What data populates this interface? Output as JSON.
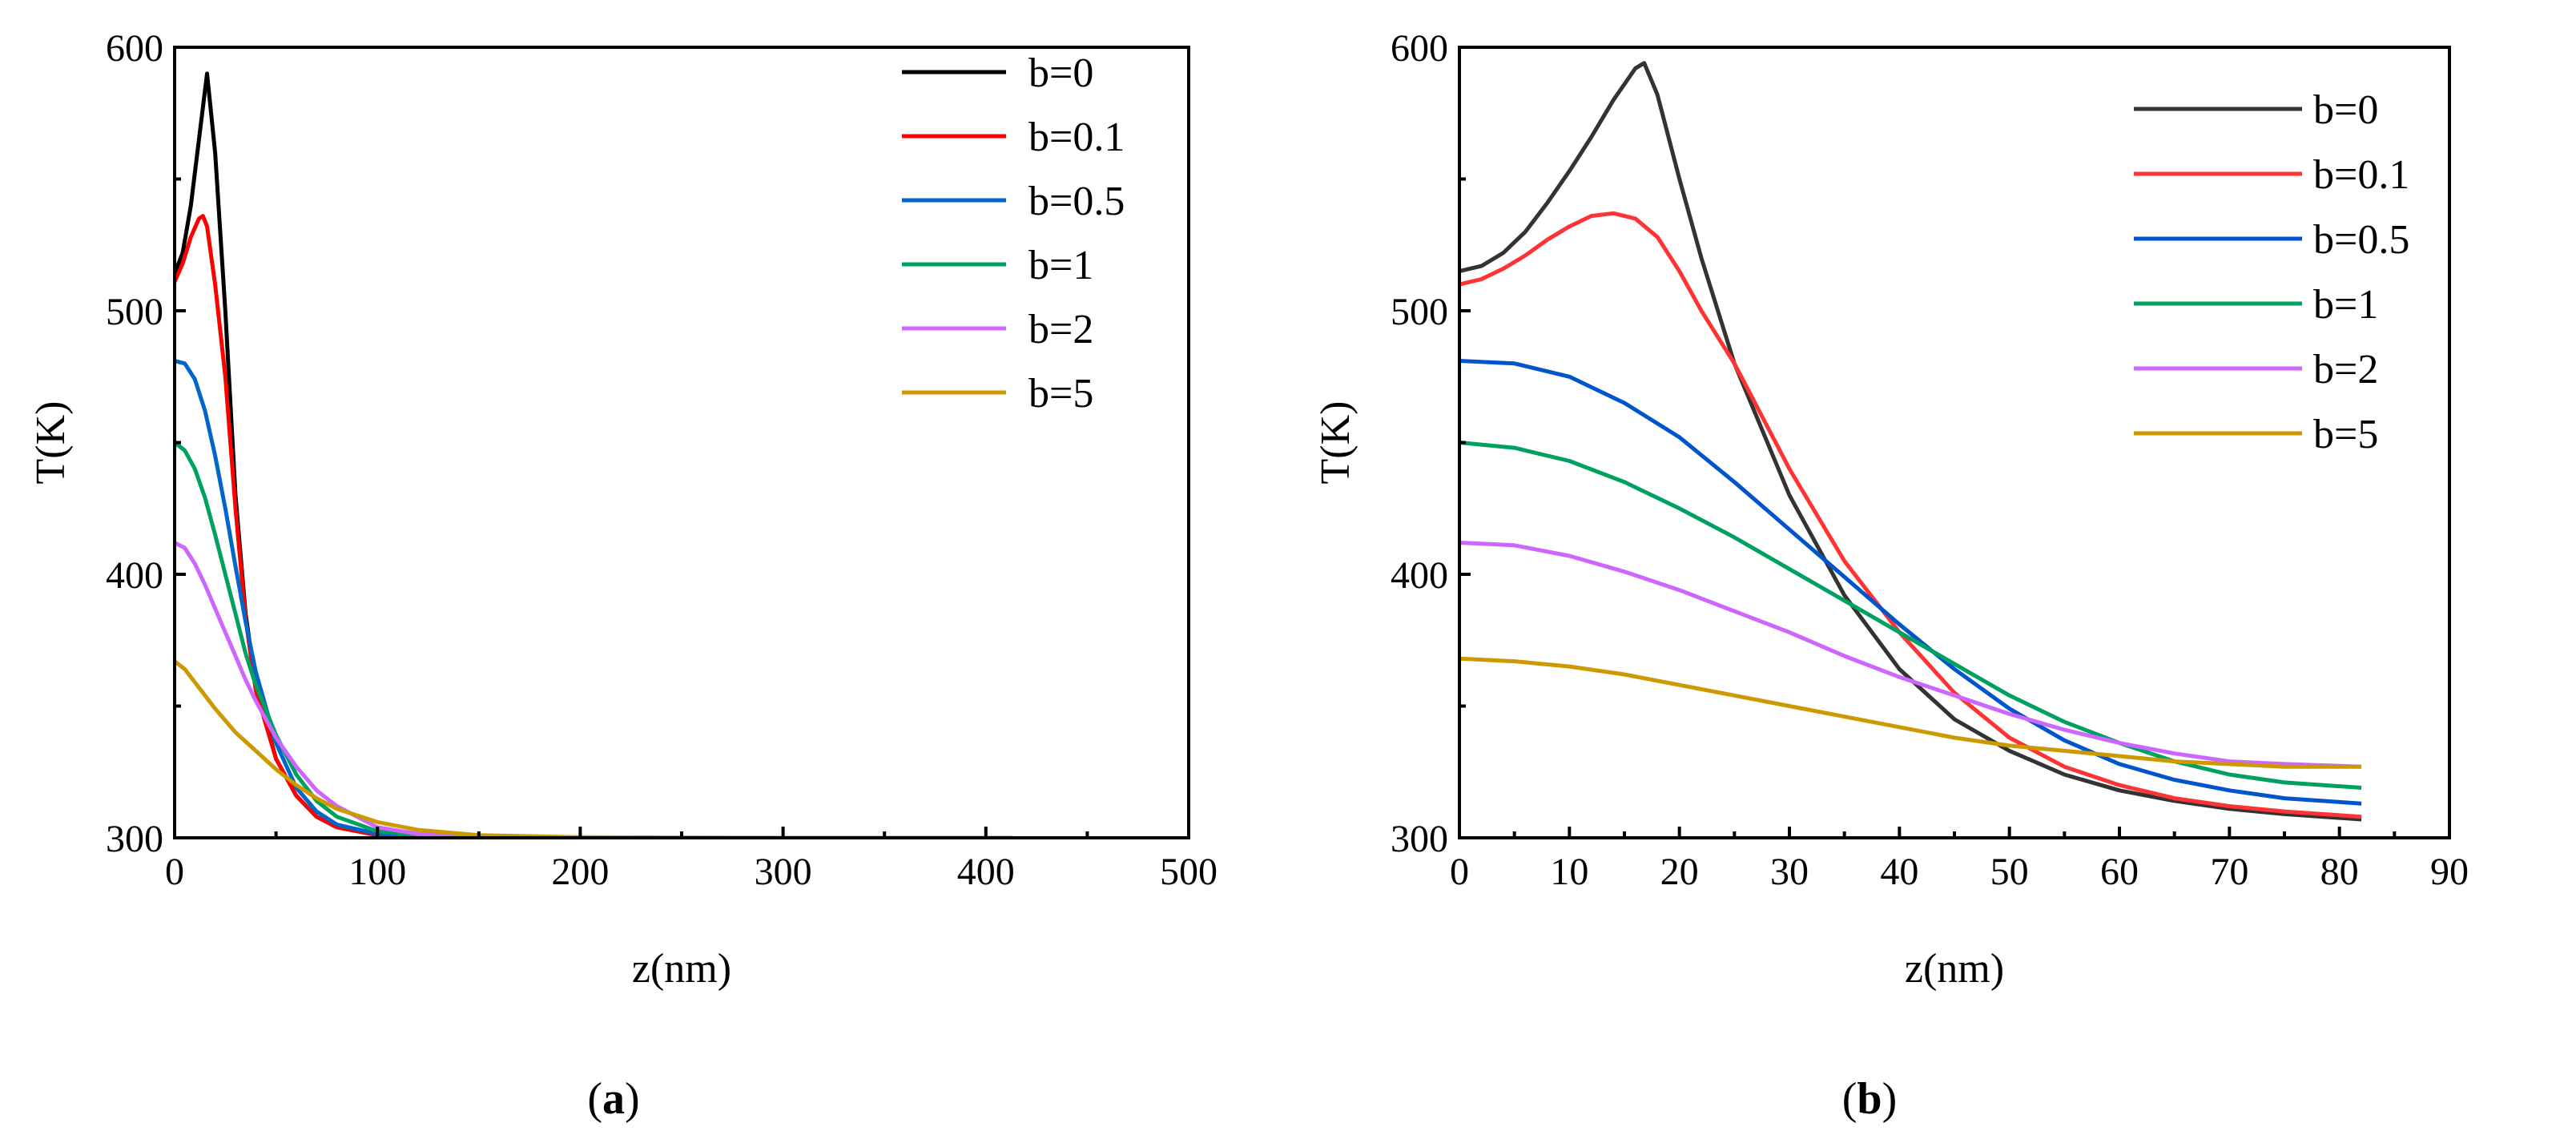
{
  "chart_data": [
    {
      "type": "line",
      "panel_label": "a",
      "xlabel": "z(nm)",
      "ylabel": "T(K)",
      "xlim": [
        0,
        500
      ],
      "ylim": [
        300,
        600
      ],
      "xticks": [
        0,
        100,
        200,
        300,
        400,
        500
      ],
      "yticks": [
        300,
        400,
        500,
        600
      ],
      "grid": false,
      "legend_position": "top-right",
      "series": [
        {
          "name": "b=0",
          "color": "#000000",
          "x": [
            0,
            4,
            8,
            12,
            16,
            20,
            25,
            30,
            35,
            40,
            50,
            60,
            70,
            80,
            100,
            120,
            150,
            200,
            300,
            413
          ],
          "y": [
            514,
            522,
            540,
            565,
            590,
            560,
            500,
            430,
            385,
            358,
            330,
            316,
            308,
            304,
            301,
            300.5,
            300,
            300,
            300,
            300
          ]
        },
        {
          "name": "b=0.1",
          "color": "#ff0000",
          "x": [
            0,
            4,
            8,
            12,
            14,
            16,
            20,
            25,
            30,
            35,
            40,
            50,
            60,
            70,
            80,
            100,
            120,
            150,
            200,
            300,
            413
          ],
          "y": [
            511,
            518,
            528,
            535,
            536,
            532,
            510,
            475,
            425,
            383,
            356,
            330,
            316,
            308,
            304,
            301,
            300.5,
            300,
            300,
            300,
            300
          ]
        },
        {
          "name": "b=0.5",
          "color": "#0066cc",
          "x": [
            0,
            5,
            10,
            15,
            20,
            25,
            30,
            35,
            40,
            50,
            60,
            70,
            80,
            100,
            120,
            150,
            200,
            300,
            413
          ],
          "y": [
            481,
            480,
            474,
            462,
            445,
            425,
            403,
            382,
            363,
            336,
            319,
            310,
            305,
            301.5,
            300.5,
            300,
            300,
            300,
            300
          ]
        },
        {
          "name": "b=1",
          "color": "#00a060",
          "x": [
            0,
            5,
            10,
            15,
            20,
            25,
            30,
            35,
            40,
            50,
            60,
            70,
            80,
            100,
            120,
            150,
            200,
            300,
            413
          ],
          "y": [
            450,
            447,
            440,
            429,
            415,
            400,
            385,
            370,
            358,
            339,
            324,
            314,
            308,
            302.5,
            301,
            300.3,
            300,
            300,
            300
          ]
        },
        {
          "name": "b=2",
          "color": "#cc66ff",
          "x": [
            0,
            5,
            10,
            15,
            20,
            25,
            30,
            35,
            40,
            50,
            60,
            70,
            80,
            100,
            120,
            150,
            200,
            300,
            413
          ],
          "y": [
            412,
            410,
            404,
            396,
            387,
            378,
            369,
            360,
            352,
            338,
            327,
            318,
            312,
            304,
            301.5,
            300.5,
            300,
            300,
            300
          ]
        },
        {
          "name": "b=5",
          "color": "#cc9900",
          "x": [
            0,
            5,
            10,
            15,
            20,
            30,
            40,
            50,
            60,
            70,
            80,
            100,
            120,
            150,
            200,
            300,
            413
          ],
          "y": [
            367,
            364,
            359,
            354,
            349,
            340,
            333,
            326,
            320,
            315,
            311,
            306,
            303,
            301,
            300.2,
            300,
            300
          ]
        }
      ]
    },
    {
      "type": "line",
      "panel_label": "b",
      "xlabel": "z(nm)",
      "ylabel": "T(K)",
      "xlim": [
        0,
        90
      ],
      "ylim": [
        300,
        600
      ],
      "xticks": [
        0,
        10,
        20,
        30,
        40,
        50,
        60,
        70,
        80,
        90
      ],
      "yticks": [
        300,
        400,
        500,
        600
      ],
      "grid": false,
      "legend_position": "top-right",
      "series": [
        {
          "name": "b=0",
          "color": "#333333",
          "x": [
            0,
            2,
            4,
            6,
            8,
            10,
            12,
            14,
            16,
            16.8,
            18,
            20,
            22,
            25,
            30,
            35,
            40,
            45,
            50,
            55,
            60,
            65,
            70,
            75,
            82
          ],
          "y": [
            515,
            517,
            522,
            530,
            541,
            553,
            566,
            580,
            592,
            594,
            582,
            550,
            520,
            480,
            430,
            392,
            364,
            345,
            333,
            324,
            318,
            314,
            311,
            309,
            307
          ]
        },
        {
          "name": "b=0.1",
          "color": "#ff3333",
          "x": [
            0,
            2,
            4,
            6,
            8,
            10,
            12,
            14,
            16,
            18,
            20,
            22,
            25,
            30,
            35,
            40,
            45,
            50,
            55,
            60,
            65,
            70,
            75,
            82
          ],
          "y": [
            510,
            512,
            516,
            521,
            527,
            532,
            536,
            537,
            535,
            528,
            515,
            500,
            480,
            440,
            405,
            378,
            355,
            338,
            327,
            320,
            315,
            312,
            310,
            308
          ]
        },
        {
          "name": "b=0.5",
          "color": "#0055cc",
          "x": [
            0,
            5,
            10,
            15,
            20,
            25,
            30,
            35,
            40,
            45,
            50,
            55,
            60,
            65,
            70,
            75,
            82
          ],
          "y": [
            481,
            480,
            475,
            465,
            452,
            435,
            417,
            399,
            381,
            364,
            349,
            337,
            328,
            322,
            318,
            315,
            313
          ]
        },
        {
          "name": "b=1",
          "color": "#00a060",
          "x": [
            0,
            5,
            10,
            15,
            20,
            25,
            30,
            35,
            40,
            45,
            50,
            55,
            60,
            65,
            70,
            75,
            82
          ],
          "y": [
            450,
            448,
            443,
            435,
            425,
            414,
            402,
            390,
            378,
            366,
            354,
            344,
            336,
            329,
            324,
            321,
            319
          ]
        },
        {
          "name": "b=2",
          "color": "#cc66ff",
          "x": [
            0,
            5,
            10,
            15,
            20,
            25,
            30,
            35,
            40,
            45,
            50,
            55,
            60,
            65,
            70,
            75,
            82
          ],
          "y": [
            412,
            411,
            407,
            401,
            394,
            386,
            378,
            369,
            361,
            354,
            347,
            341,
            336,
            332,
            329,
            328,
            327
          ]
        },
        {
          "name": "b=5",
          "color": "#cc9900",
          "x": [
            0,
            5,
            10,
            15,
            20,
            25,
            30,
            35,
            40,
            45,
            50,
            55,
            60,
            65,
            70,
            75,
            82
          ],
          "y": [
            368,
            367,
            365,
            362,
            358,
            354,
            350,
            346,
            342,
            338,
            335,
            333,
            331,
            329,
            328,
            327,
            327
          ]
        }
      ]
    }
  ]
}
